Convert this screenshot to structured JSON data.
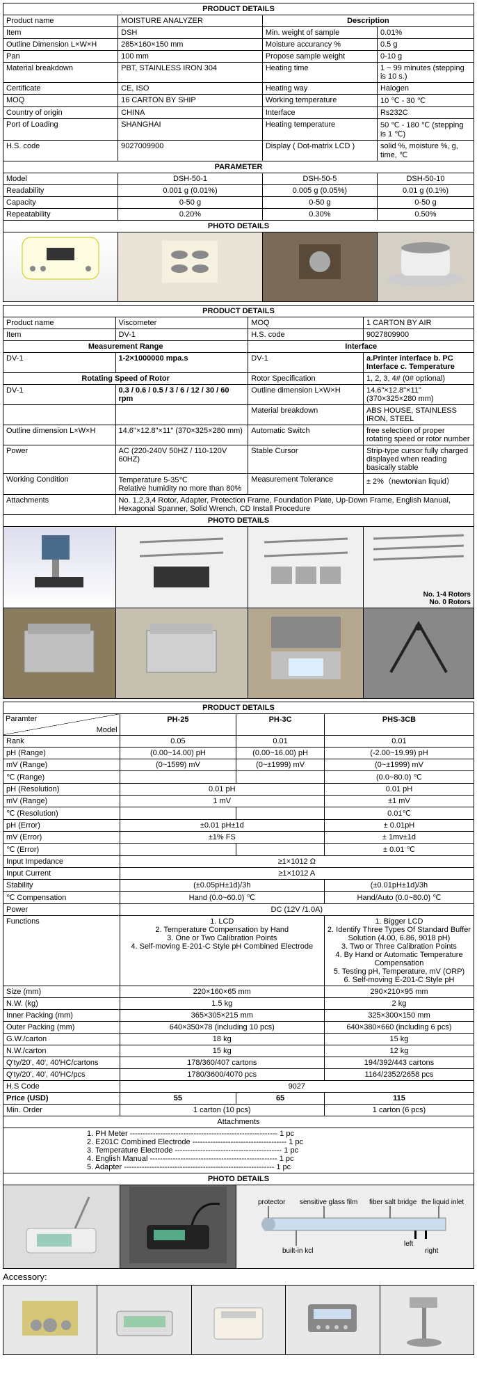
{
  "section1": {
    "title": "PRODUCT DETAILS",
    "desc_hdr": "Description",
    "rows": [
      [
        "Product name",
        "MOISTURE ANALYZER"
      ],
      [
        "Item",
        "DSH",
        "Min. weight of sample",
        "0.01%"
      ],
      [
        "Outline Dimension L×W×H",
        "285×160×150 mm",
        "Moisture accurancy %",
        "0.5 g"
      ],
      [
        "Pan",
        "100 mm",
        "Propose sample weight",
        "0-10 g"
      ],
      [
        "Material breakdown",
        "PBT, STAINLESS IRON 304",
        "Heating time",
        "1 ~ 99 minutes (stepping is 10 s.)"
      ],
      [
        "Certificate",
        "CE, ISO",
        "Heating way",
        "Halogen"
      ],
      [
        "MOQ",
        "16 CARTON BY SHIP",
        "Working temperature",
        "10 ℃ - 30 ℃"
      ],
      [
        "Country of origin",
        "CHINA",
        "Interface",
        "Rs232C"
      ],
      [
        "Port of Loading",
        "SHANGHAI",
        "Heating temperature",
        "50 ℃ - 180 ℃ (stepping is 1 ℃)"
      ],
      [
        "H.S. code",
        "9027009900",
        "Display ( Dot-matrix LCD )",
        "solid %, moisture %, g, time, ℃"
      ]
    ],
    "param_hdr": "PARAMETER",
    "param": {
      "head": [
        "Model",
        "DSH-50-1",
        "DSH-50-5",
        "DSH-50-10"
      ],
      "rows": [
        [
          "Readability",
          "0.001 g (0.01%)",
          "0.005 g (0.05%)",
          "0.01 g (0.1%)"
        ],
        [
          "Capacity",
          "0-50 g",
          "0-50 g",
          "0-50 g"
        ],
        [
          "Repeatability",
          "0.20%",
          "0.30%",
          "0.50%"
        ]
      ]
    },
    "photo_hdr": "PHOTO DETAILS"
  },
  "section2": {
    "title": "PRODUCT DETAILS",
    "top_rows": [
      [
        "Product name",
        "Viscometer",
        "MOQ",
        "1 CARTON BY AIR"
      ],
      [
        "Item",
        "DV-1",
        "H.S. code",
        "9027809900"
      ]
    ],
    "mr_hdr": "Measurement Range",
    "if_hdr": "Interface",
    "mr1": [
      "DV-1",
      "1-2×1000000 mpa.s",
      "DV-1",
      "a.Printer interface b. PC Interface c. Temperature"
    ],
    "rs_hdr": "Rotating Speed of Rotor",
    "rs_right": [
      "Rotor Specification",
      "1, 2, 3, 4# (0# optional)"
    ],
    "rows2": [
      [
        "DV-1",
        "0.3 / 0.6 / 0.5 / 3 / 6 / 12 / 30 / 60 rpm",
        "Outline dimension  L×W×H",
        "14.6\"×12.8\"×11\" (370×325×280 mm)"
      ],
      [
        "",
        "",
        "Material breakdown",
        "ABS HOUSE, STAINLESS  IRON, STEEL"
      ],
      [
        "Outline dimension  L×W×H",
        "14.6\"×12.8\"×11\" (370×325×280 mm)",
        "Automatic Switch",
        "free selection of proper rotating speed or rotor number"
      ],
      [
        "Power",
        "AC (220-240V 50HZ / 110-120V 60HZ)",
        "Stable Cursor",
        "Strip-type cursor fully charged displayed when reading basically stable"
      ],
      [
        "Working Condition",
        "Temperature 5-35℃\nRelative humidity no more than 80%",
        "Measurement Tolerance",
        "± 2%（newtonian liquid）"
      ],
      [
        "Attachments",
        "No. 1,2,3,4 Rotor, Adapter, Protection Frame, Foundation Plate, Up-Down Frame, English Manual, Hexagonal Spanner, Solid Wrench, CD Install Procedure",
        "",
        ""
      ]
    ],
    "photo_hdr": "PHOTO DETAILS",
    "rotor_note1": "No. 1-4 Rotors",
    "rotor_note2": "No. 0 Rotors"
  },
  "section3": {
    "title": "PRODUCT DETAILS",
    "diag_left": "Paramter",
    "diag_right": "Model",
    "models": [
      "PH-25",
      "PH-3C",
      "PHS-3CB"
    ],
    "rows": [
      [
        "Rank",
        "0.05",
        "0.01",
        "0.01"
      ],
      [
        "pH (Range)",
        "(0.00~14.00) pH",
        "(0.00~16.00) pH",
        "(-2.00~19.99) pH"
      ],
      [
        "mV (Range)",
        "(0~1599) mV",
        "(0~±1999) mV",
        "(0~±1999) mV"
      ],
      [
        "℃ (Range)",
        "",
        "",
        "(0.0~80.0) ℃"
      ],
      [
        "pH (Resolution)",
        "0.01 pH",
        "__SPAN2__",
        "0.01 pH"
      ],
      [
        "mV (Range)",
        "1 mV",
        "__SPAN2__",
        "±1 mV"
      ],
      [
        "℃ (Resolution)",
        "",
        "",
        "0.01℃"
      ],
      [
        "pH (Error)",
        "±0.01 pH±1d",
        "__SPAN2__",
        "± 0.01pH"
      ],
      [
        "mV (Error)",
        "±1% FS",
        "__SPAN2__",
        "± 1mv±1d"
      ],
      [
        "℃ (Error)",
        "",
        "",
        "± 0.01 ℃"
      ],
      [
        "Input Impedance",
        "≥1×1012 Ω",
        "__SPAN3__",
        ""
      ],
      [
        "Input Current",
        "≥1×1012 A",
        "__SPAN3__",
        ""
      ],
      [
        "Stability",
        "(±0.05pH±1d)/3h",
        "__SPAN2__",
        "(±0.01pH±1d)/3h"
      ],
      [
        "℃ Compensation",
        "Hand (0.0~60.0) ℃",
        "__SPAN2__",
        "Hand/Auto (0.0~80.0) ℃"
      ],
      [
        "Power",
        "DC (12V /1.0A)",
        "__SPAN3__",
        ""
      ],
      [
        "Functions",
        "1. LCD\n2. Temperature Compensation by Hand\n3. One or Two Calibration Points\n4. Self-moving E-201-C Style pH Combined Electrode",
        "__SPAN2__",
        "1. Bigger LCD\n2. Identify Three Types Of Standard Buffer\nSolution (4.00, 6.86, 9018 pH)\n3. Two or Three Calibration Points\n4. By Hand or Automatic Temperature\nCompensation\n5. Testing pH, Temperature, mV (ORP)\n6. Self-moving E-201-C Style pH"
      ],
      [
        "Size (mm)",
        "220×160×65 mm",
        "__SPAN2__",
        "290×210×95 mm"
      ],
      [
        "N.W. (kg)",
        "1.5 kg",
        "__SPAN2__",
        "2 kg"
      ],
      [
        "Inner Packing (mm)",
        "365×305×215 mm",
        "__SPAN2__",
        "325×300×150 mm"
      ],
      [
        "Outer Packing (mm)",
        "640×350×78 (including 10 pcs)",
        "__SPAN2__",
        "640×380×660 (including 6 pcs)"
      ],
      [
        "G.W./carton",
        "18 kg",
        "__SPAN2__",
        "15 kg"
      ],
      [
        "N.W./carton",
        "15 kg",
        "__SPAN2__",
        "12 kg"
      ],
      [
        "Q'ty/20', 40', 40'HC/cartons",
        "178/360/407 cartons",
        "__SPAN2__",
        "194/392/443 cartons"
      ],
      [
        "Q'ty/20', 40', 40'HC/pcs",
        "1780/3600/4070 pcs",
        "__SPAN2__",
        "1164/2352/2658 pcs"
      ],
      [
        "H.S Code",
        "9027",
        "__SPAN3__",
        ""
      ]
    ],
    "price_row": [
      "Price (USD)",
      "55",
      "65",
      "115"
    ],
    "min_order": [
      "Min. Order",
      "1 carton (10 pcs)",
      "__SPAN2__",
      "1 carton (6 pcs)"
    ],
    "attach_hdr": "Attachments",
    "attachments": [
      "1. PH Meter ---------------------------------------------------------- 1 pc",
      "2. E201C Combined Electrode ------------------------------------- 1 pc",
      "3. Temperature Electrode ------------------------------------------ 1 pc",
      "4. English Manual -------------------------------------------------- 1 pc",
      "5. Adapter ----------------------------------------------------------- 1 pc"
    ],
    "photo_hdr": "PHOTO DETAILS",
    "diagram_labels": [
      "protector",
      "sensitive glass film",
      "fiber salt bridge",
      "the liquid inlet",
      "built-in kcl",
      "left",
      "right"
    ],
    "accessory_hdr": "Accessory:"
  }
}
